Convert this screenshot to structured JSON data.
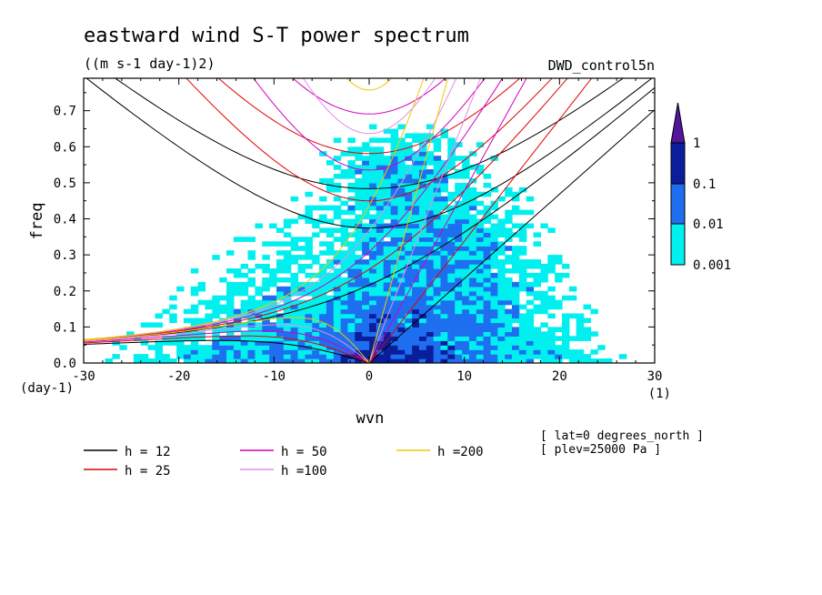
{
  "chart_data": {
    "type": "heatmap",
    "title": "eastward wind S-T power spectrum",
    "units": "((m s-1 day-1)2)",
    "experiment": "DWD_control5n",
    "xlabel": "wvn",
    "ylabel": "freq",
    "x_unit": "(1)",
    "y_unit": "(day-1)",
    "xlim": [
      -30,
      30
    ],
    "ylim": [
      0,
      0.79
    ],
    "x_ticks": [
      "-30",
      "-20",
      "-10",
      "0",
      "10",
      "20",
      "30"
    ],
    "y_ticks": [
      "0.0",
      "0.1",
      "0.2",
      "0.3",
      "0.4",
      "0.5",
      "0.6",
      "0.7"
    ],
    "x_tick_values": [
      -30,
      -20,
      -10,
      0,
      10,
      20,
      30
    ],
    "y_tick_values": [
      0,
      0.1,
      0.2,
      0.3,
      0.4,
      0.5,
      0.6,
      0.7
    ],
    "colorbar": {
      "labels": [
        "1",
        "0.1",
        "0.01",
        "0.001"
      ],
      "colors": [
        "#55149e",
        "#0a1e9c",
        "#1e6ff0",
        "#00f0f0"
      ],
      "levels": [
        0.001,
        0.01,
        0.1,
        1
      ]
    },
    "dispersion_curves": [
      {
        "label": "h = 12",
        "h": 12,
        "color": "#000000"
      },
      {
        "label": "h = 25",
        "h": 25,
        "color": "#e00000"
      },
      {
        "label": "h = 50",
        "h": 50,
        "color": "#d000c0"
      },
      {
        "label": "h =100",
        "h": 100,
        "color": "#e090e0"
      },
      {
        "label": "h =200",
        "h": 200,
        "color": "#f0c800"
      }
    ],
    "annotations": [
      "[ lat=0 degrees_north ]",
      "[ plev=25000 Pa ]"
    ]
  }
}
